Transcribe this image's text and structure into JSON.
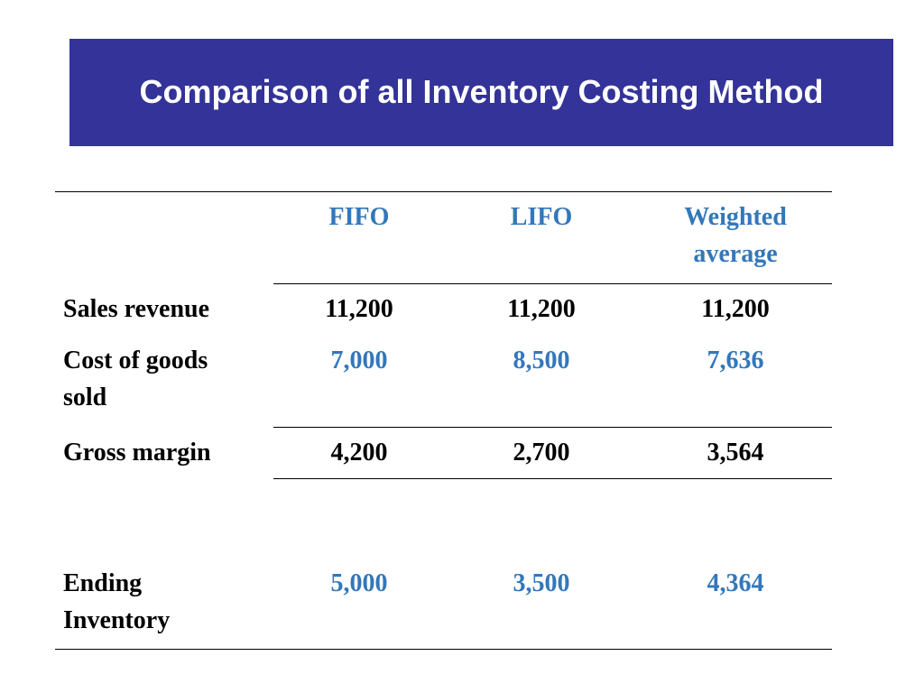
{
  "slide": {
    "title": "Comparison of all Inventory Costing Method"
  },
  "table": {
    "headers": [
      "FIFO",
      "LIFO",
      "Weighted average"
    ],
    "rows": [
      {
        "label": "Sales revenue",
        "fifo": "11,200",
        "lifo": "11,200",
        "weighted": "11,200"
      },
      {
        "label": "Cost of goods sold",
        "fifo": "7,000",
        "lifo": "8,500",
        "weighted": "7,636"
      },
      {
        "label": "Gross margin",
        "fifo": "4,200",
        "lifo": "2,700",
        "weighted": "3,564"
      },
      {
        "label": "Ending Inventory",
        "fifo": "5,000",
        "lifo": "3,500",
        "weighted": "4,364"
      }
    ]
  },
  "colors": {
    "title_background": "#333399",
    "title_text": "#ffffff",
    "highlight_text": "#3377bb",
    "body_text": "#000000"
  }
}
